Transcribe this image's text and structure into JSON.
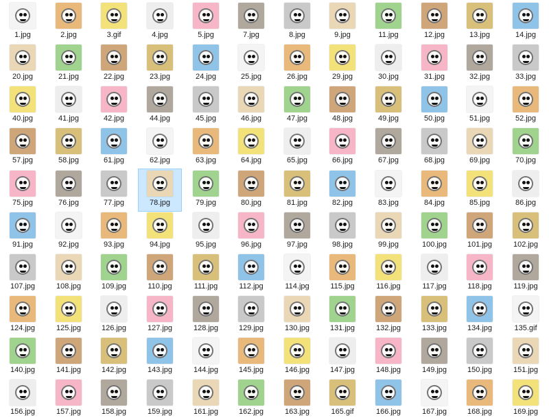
{
  "window": {
    "selected_file": "78.jpg"
  },
  "files": [
    "1.jpg",
    "2.jpg",
    "3.gif",
    "4.jpg",
    "5.jpg",
    "7.jpg",
    "8.jpg",
    "9.jpg",
    "11.jpg",
    "12.jpg",
    "13.jpg",
    "14.jpg",
    "20.jpg",
    "21.jpg",
    "22.jpg",
    "23.jpg",
    "24.jpg",
    "25.jpg",
    "26.jpg",
    "29.jpg",
    "30.jpg",
    "31.jpg",
    "32.jpg",
    "33.jpg",
    "40.jpg",
    "41.jpg",
    "42.jpg",
    "44.jpg",
    "45.jpg",
    "46.jpg",
    "47.jpg",
    "48.jpg",
    "49.jpg",
    "50.jpg",
    "51.jpg",
    "52.jpg",
    "57.jpg",
    "58.jpg",
    "61.jpg",
    "62.jpg",
    "63.jpg",
    "64.jpg",
    "65.jpg",
    "66.jpg",
    "67.jpg",
    "68.jpg",
    "69.jpg",
    "70.jpg",
    "75.jpg",
    "76.jpg",
    "77.jpg",
    "78.jpg",
    "79.jpg",
    "80.jpg",
    "81.jpg",
    "82.jpg",
    "83.jpg",
    "84.jpg",
    "85.jpg",
    "86.jpg",
    "91.jpg",
    "92.jpg",
    "93.jpg",
    "94.jpg",
    "95.jpg",
    "96.jpg",
    "97.jpg",
    "98.jpg",
    "99.jpg",
    "100.jpg",
    "101.jpg",
    "102.jpg",
    "107.jpg",
    "108.jpg",
    "109.jpg",
    "110.jpg",
    "111.jpg",
    "112.jpg",
    "114.jpg",
    "115.jpg",
    "116.jpg",
    "117.jpg",
    "118.jpg",
    "119.jpg",
    "124.jpg",
    "125.jpg",
    "126.jpg",
    "127.jpg",
    "128.jpg",
    "129.jpg",
    "130.jpg",
    "131.jpg",
    "132.jpg",
    "133.jpg",
    "134.jpg",
    "135.gif",
    "140.jpg",
    "141.jpg",
    "142.jpg",
    "143.jpg",
    "144.jpg",
    "145.jpg",
    "146.jpg",
    "147.jpg",
    "148.jpg",
    "149.jpg",
    "150.jpg",
    "151.jpg",
    "156.jpg",
    "157.jpg",
    "158.jpg",
    "159.jpg",
    "161.jpg",
    "162.jpg",
    "163.jpg",
    "165.gif",
    "166.jpg",
    "167.jpg",
    "168.jpg",
    "169.jpg"
  ],
  "palette": {
    "selection_bg": "#cce8ff",
    "selection_border": "#99d1ff",
    "thumb_colors": [
      "#f4f4f4",
      "#e9d7b5",
      "#f3e27a",
      "#cfa57a",
      "#f7b6c8",
      "#8fc3e8",
      "#c9c9c9",
      "#e8b97a",
      "#9fd38e",
      "#eeeeee",
      "#d8c07a",
      "#b0a79d"
    ]
  }
}
